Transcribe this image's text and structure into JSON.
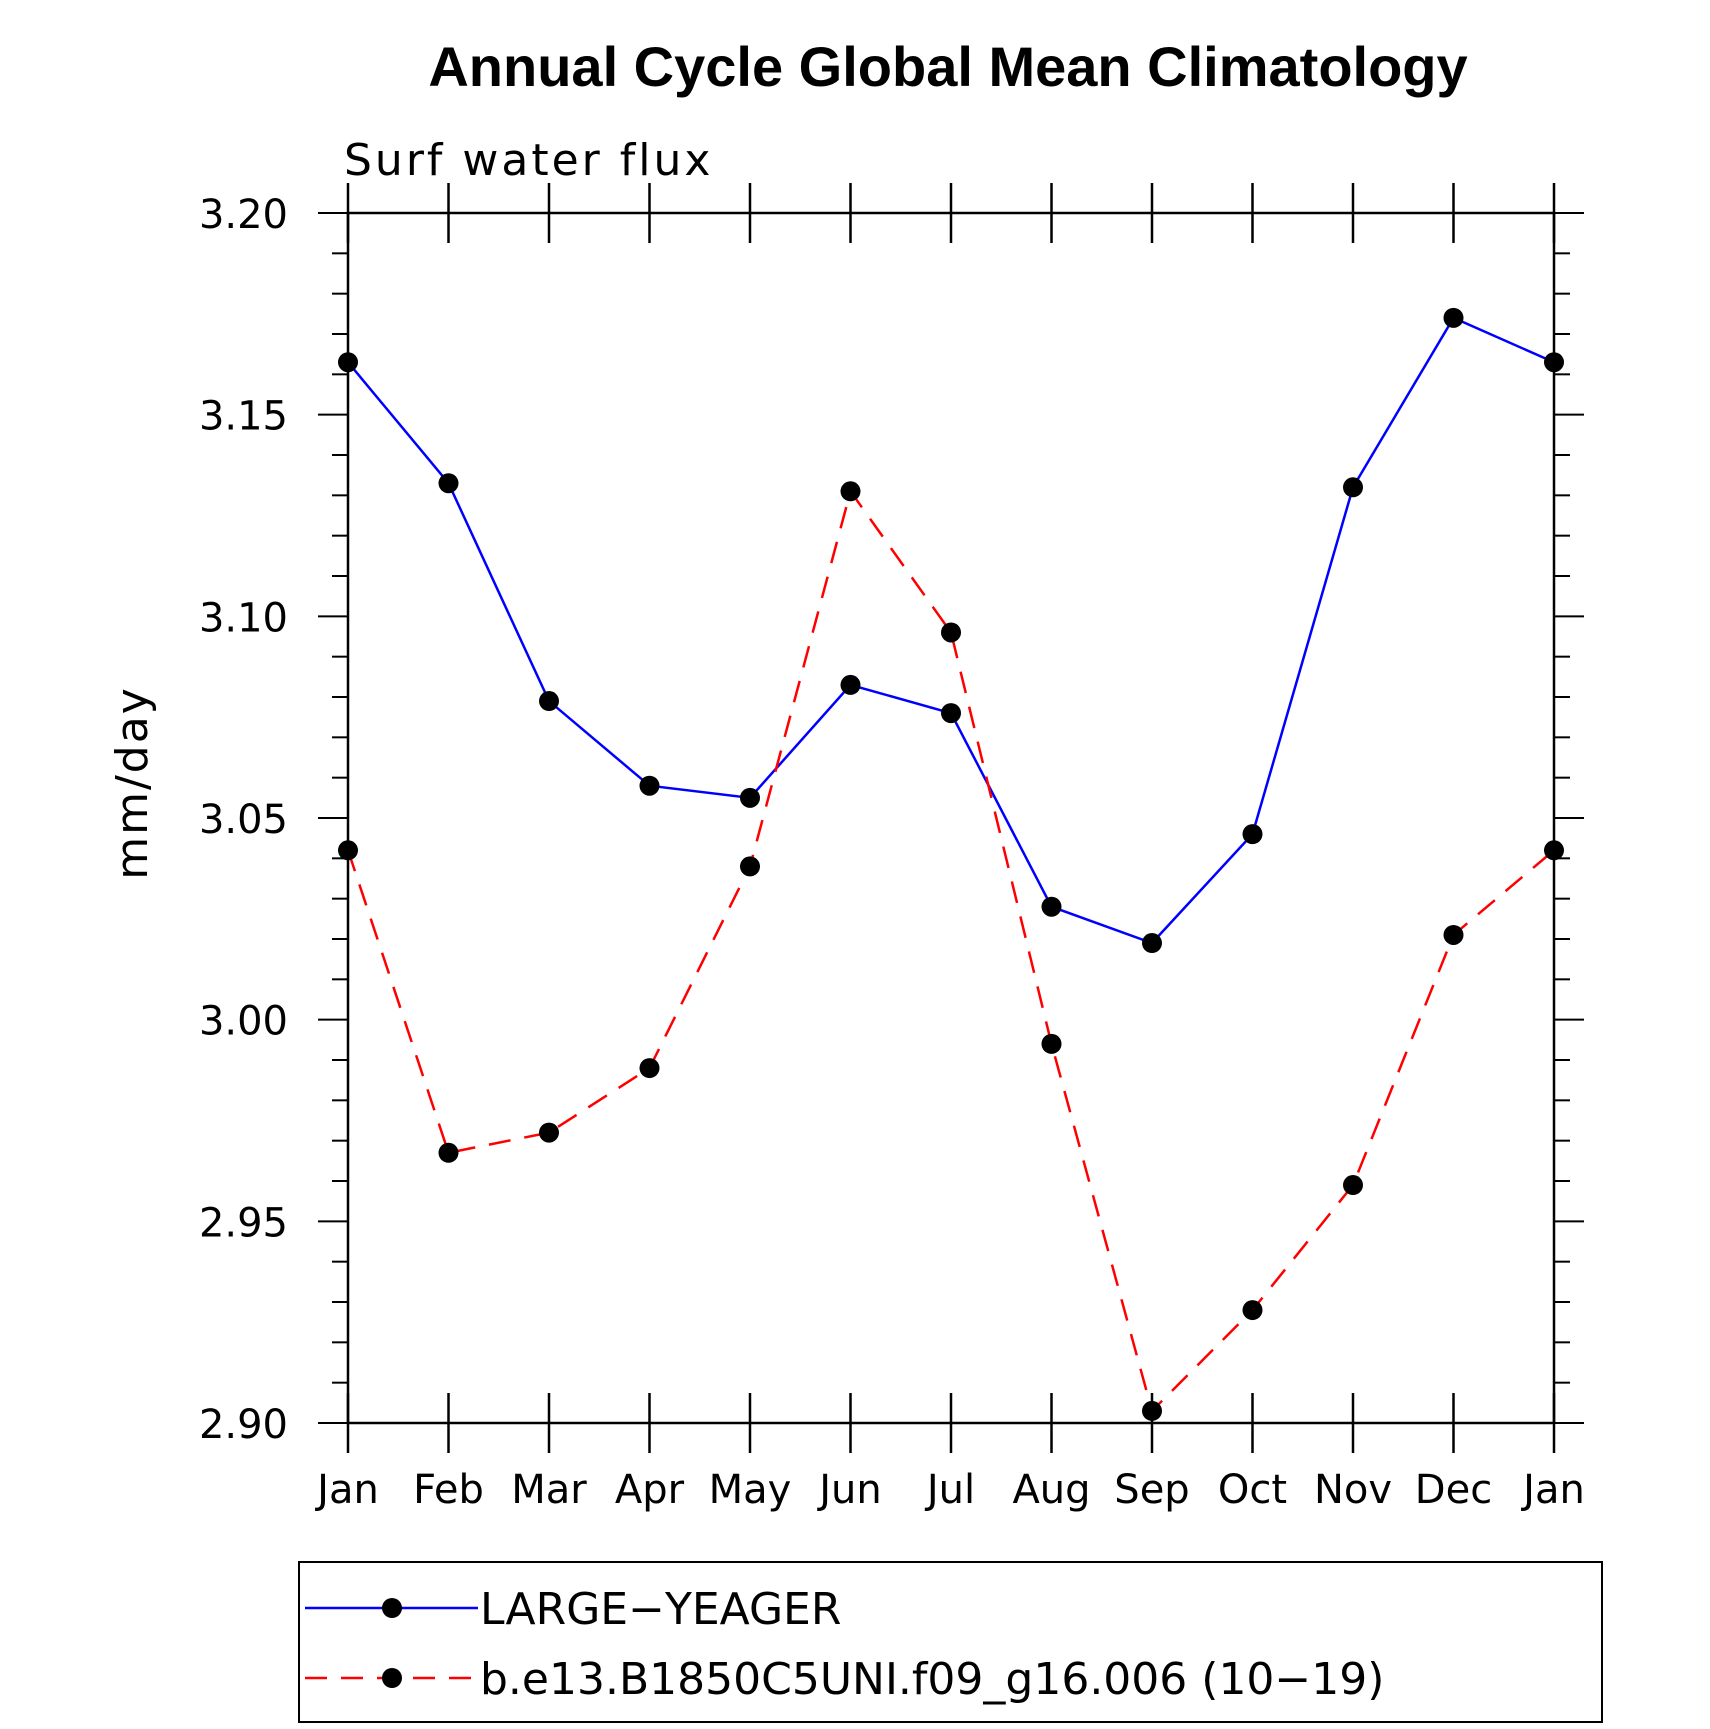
{
  "chart_data": {
    "type": "line",
    "title": "Annual Cycle Global Mean Climatology",
    "subtitle": "Surf water flux",
    "xlabel": "",
    "ylabel": "mm/day",
    "categories": [
      "Jan",
      "Feb",
      "Mar",
      "Apr",
      "May",
      "Jun",
      "Jul",
      "Aug",
      "Sep",
      "Oct",
      "Nov",
      "Dec",
      "Jan"
    ],
    "ylim": [
      2.9,
      3.2
    ],
    "yticks": [
      "3.20",
      "3.15",
      "3.10",
      "3.05",
      "3.00",
      "2.95",
      "2.90"
    ],
    "series": [
      {
        "name": "LARGE−YEAGER",
        "color": "#0000ff",
        "dashed": false,
        "values": [
          3.163,
          3.133,
          3.079,
          3.058,
          3.055,
          3.083,
          3.076,
          3.028,
          3.019,
          3.046,
          3.132,
          3.174,
          3.163
        ]
      },
      {
        "name": "b.e13.B1850C5UNI.f09_g16.006 (10−19)",
        "color": "#ff0000",
        "dashed": true,
        "values": [
          3.042,
          2.967,
          2.972,
          2.988,
          3.038,
          3.131,
          3.096,
          2.994,
          2.903,
          2.928,
          2.959,
          3.021,
          3.042
        ]
      }
    ],
    "grid": false,
    "legend": "bottom"
  }
}
